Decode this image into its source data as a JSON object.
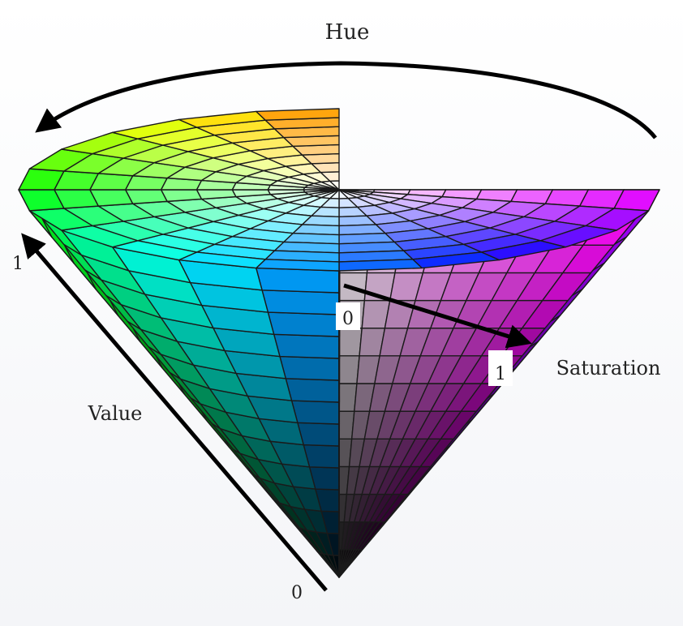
{
  "labels": {
    "hue": "Hue",
    "value": "Value",
    "saturation": "Saturation",
    "value_top": "1",
    "value_bottom": "0",
    "saturation_start": "0",
    "saturation_end": "1"
  },
  "model": {
    "hue_steps": 24,
    "saturation_steps": 9,
    "value_steps": 14,
    "cutaway_hue_start_deg": 270,
    "cutaway_hue_end_deg": 360
  },
  "colors": {
    "background": "#ffffff",
    "grid_line": "#1a1a1a",
    "arrow": "#000000"
  }
}
